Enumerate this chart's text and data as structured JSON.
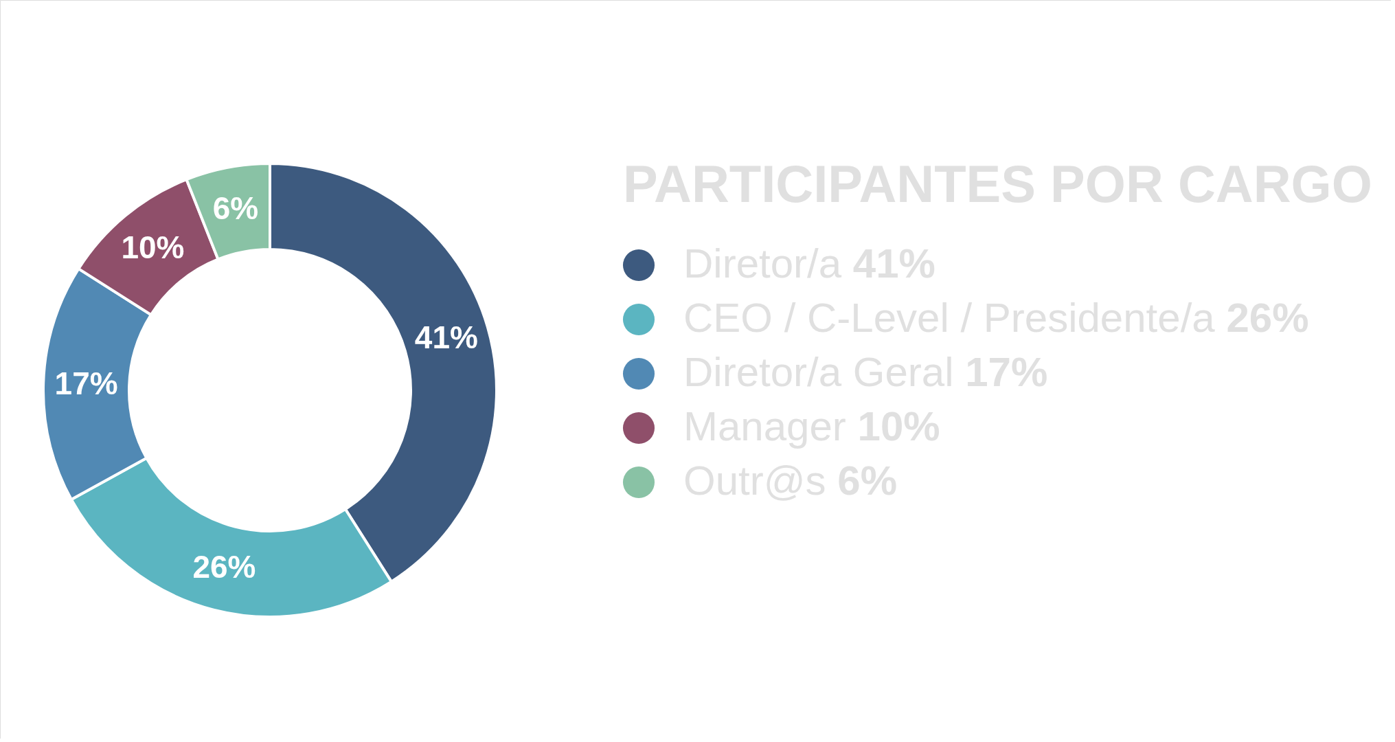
{
  "chart_data": {
    "type": "donut",
    "title": "PARTICIPANTES POR CARGO",
    "categories": [
      "Diretor/a",
      "CEO / C-Level / Presidente/a",
      "Diretor/a Geral",
      "Manager",
      "Outr@s"
    ],
    "values": [
      41,
      26,
      17,
      10,
      6
    ],
    "value_labels": [
      "41%",
      "26%",
      "17%",
      "10%",
      "6%"
    ],
    "colors": [
      "#3d5a7f",
      "#5bb5c1",
      "#5189b4",
      "#8f4f6a",
      "#89c2a5"
    ],
    "legend": "right"
  }
}
